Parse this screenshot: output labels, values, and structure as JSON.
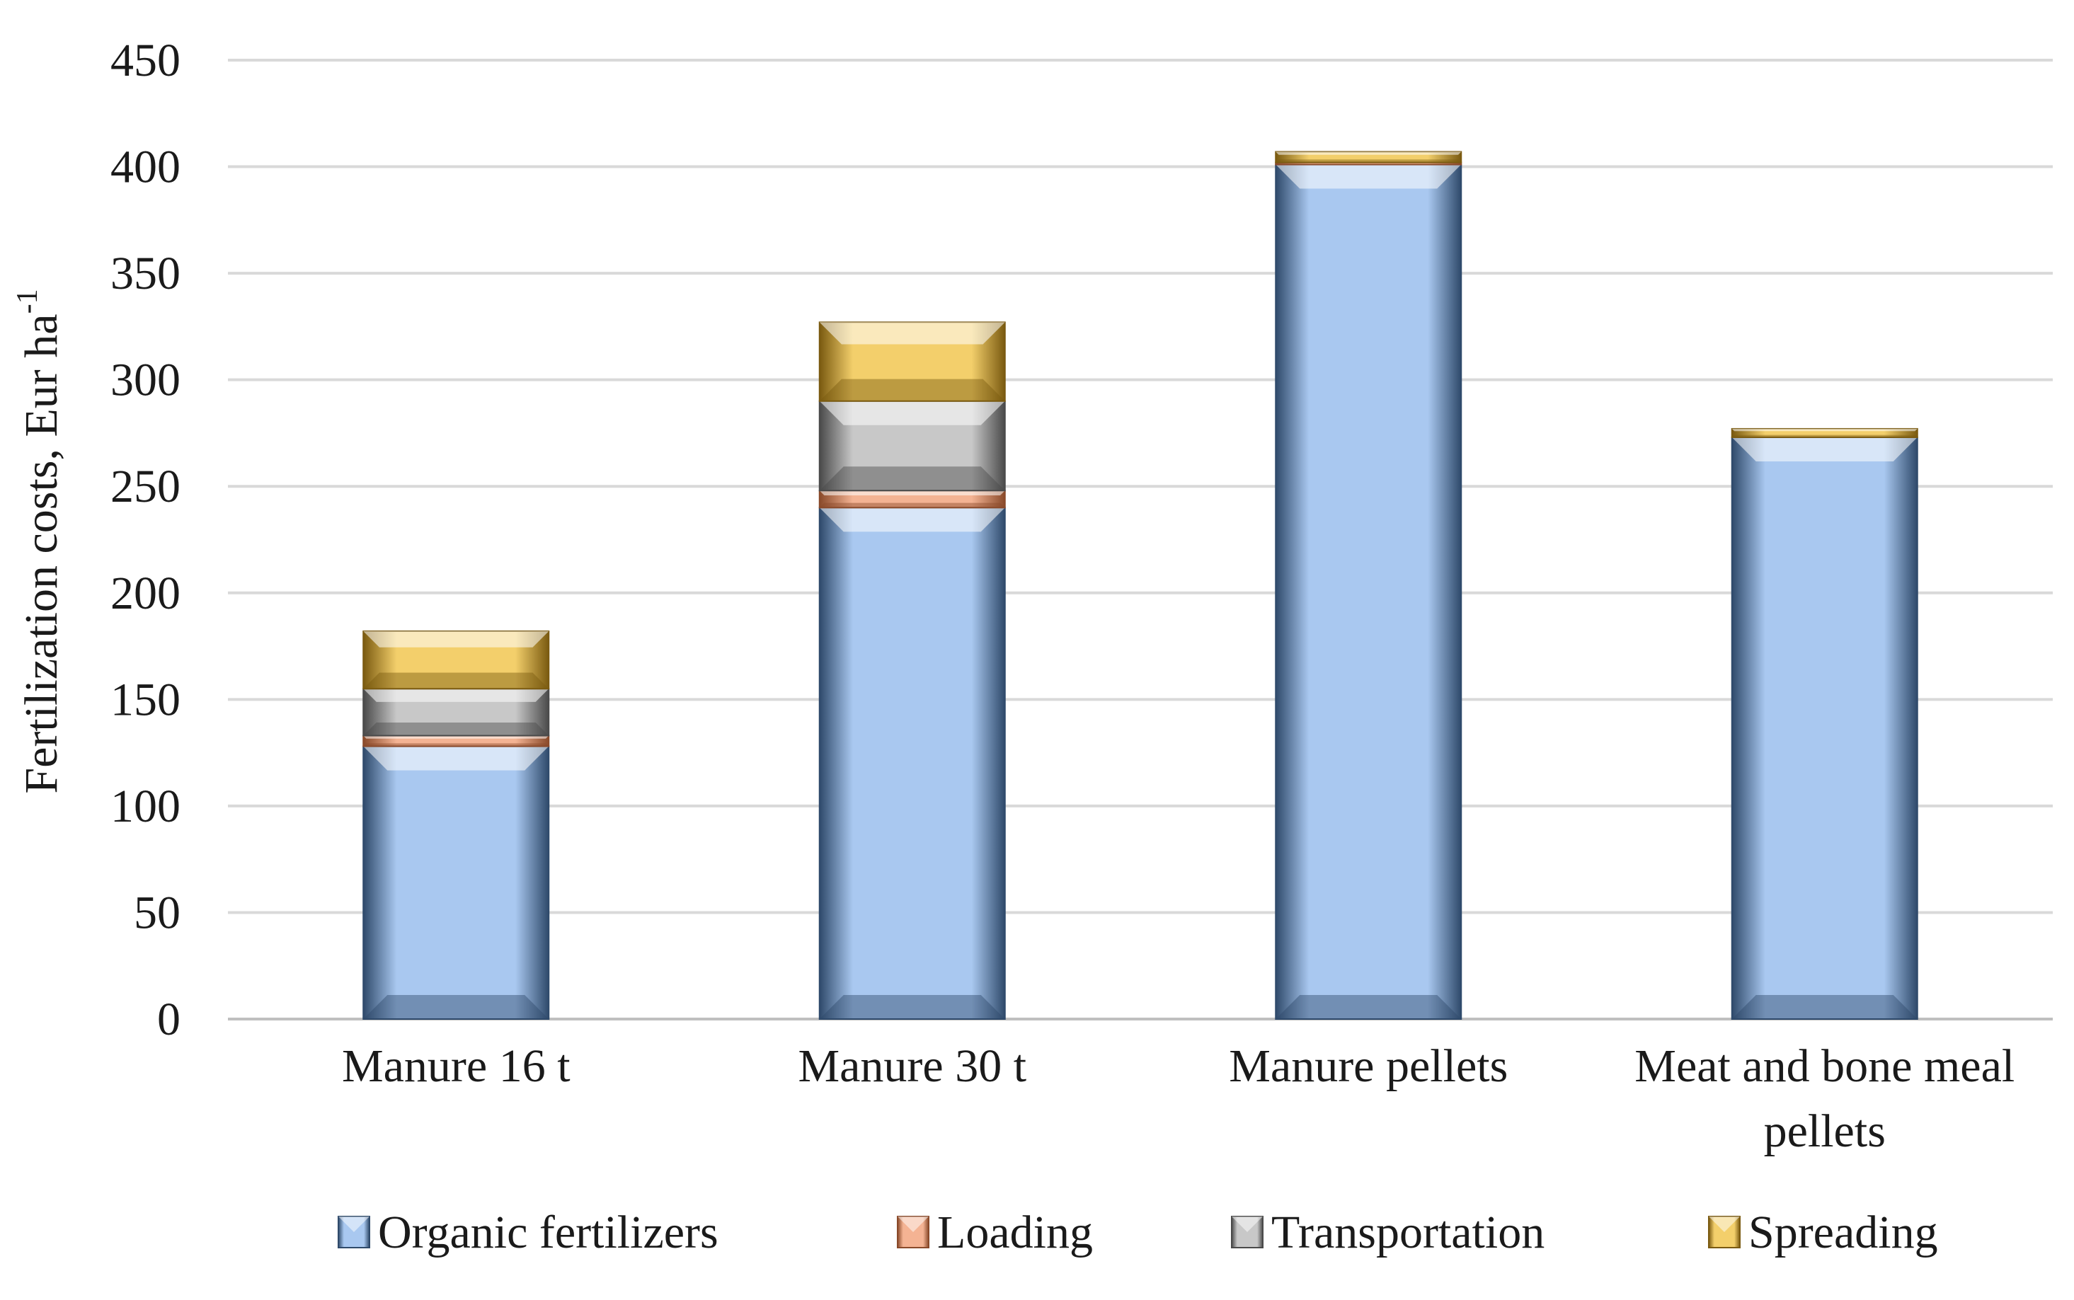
{
  "chart_data": {
    "type": "bar",
    "stacked": true,
    "title": "",
    "xlabel": "",
    "ylabel": "Fertilization costs, Eur ha",
    "ylabel_superscript": "-1",
    "ylim": [
      0,
      450
    ],
    "ytick_step": 50,
    "grid": true,
    "legend_position": "bottom",
    "categories": [
      [
        "Manure 16 t"
      ],
      [
        "Manure 30 t"
      ],
      [
        "Manure pellets"
      ],
      [
        "Meat and bone meal",
        "pellets"
      ]
    ],
    "series": [
      {
        "name": "Organic fertilizers",
        "values": [
          128,
          240,
          401,
          273
        ],
        "color": "#a9c8f0",
        "dark": "#2f4a6b"
      },
      {
        "name": "Loading",
        "values": [
          5,
          8,
          1,
          0
        ],
        "color": "#f4b393",
        "dark": "#8a4a2a"
      },
      {
        "name": "Transportation",
        "values": [
          22,
          42,
          0,
          0
        ],
        "color": "#c8c8c8",
        "dark": "#4a4a4a"
      },
      {
        "name": "Spreading",
        "values": [
          27,
          37,
          5,
          4
        ],
        "color": "#f3cf6b",
        "dark": "#7a5a10"
      }
    ]
  }
}
